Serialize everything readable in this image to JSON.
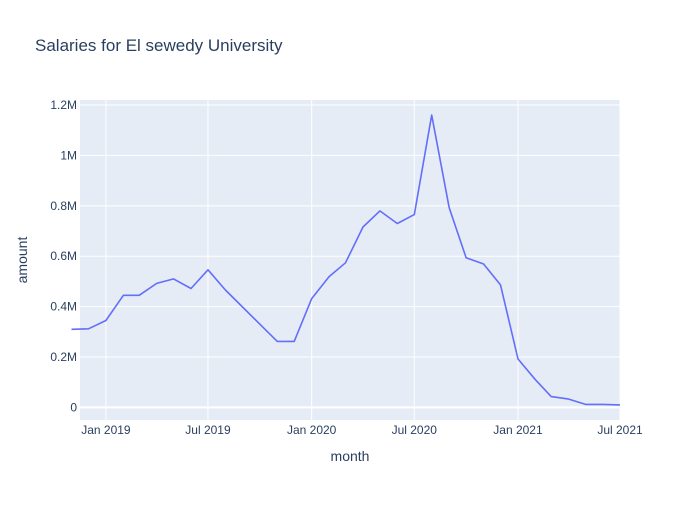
{
  "chart_data": {
    "type": "line",
    "title": "Salaries for El sewedy University",
    "xlabel": "month",
    "ylabel": "amount",
    "x_range": [
      "2018-11-16",
      "2021-07-01"
    ],
    "y_range": [
      -50000,
      1220000
    ],
    "x_ticks": [
      {
        "date": "2019-01-01",
        "label": "Jan 2019"
      },
      {
        "date": "2019-07-01",
        "label": "Jul 2019"
      },
      {
        "date": "2020-01-01",
        "label": "Jan 2020"
      },
      {
        "date": "2020-07-01",
        "label": "Jul 2020"
      },
      {
        "date": "2021-01-01",
        "label": "Jan 2021"
      },
      {
        "date": "2021-07-01",
        "label": "Jul 2021"
      }
    ],
    "y_ticks": [
      {
        "value": 0,
        "label": "0"
      },
      {
        "value": 200000,
        "label": "0.2M"
      },
      {
        "value": 400000,
        "label": "0.4M"
      },
      {
        "value": 600000,
        "label": "0.6M"
      },
      {
        "value": 800000,
        "label": "0.8M"
      },
      {
        "value": 1000000,
        "label": "1M"
      },
      {
        "value": 1200000,
        "label": "1.2M"
      }
    ],
    "grid": true,
    "line_color": "#636efa",
    "plot_bg": "#e5ecf6",
    "series": [
      {
        "x": [
          "2018-11-01",
          "2018-12-01",
          "2019-01-01",
          "2019-02-01",
          "2019-03-01",
          "2019-04-01",
          "2019-05-01",
          "2019-06-01",
          "2019-07-01",
          "2019-08-01",
          "2019-11-01",
          "2019-12-01",
          "2020-01-01",
          "2020-02-01",
          "2020-03-01",
          "2020-04-01",
          "2020-05-01",
          "2020-06-01",
          "2020-07-01",
          "2020-08-01",
          "2020-09-01",
          "2020-10-01",
          "2020-11-01",
          "2020-12-01",
          "2021-01-01",
          "2021-02-01",
          "2021-03-01",
          "2021-04-01",
          "2021-05-01",
          "2021-06-01",
          "2021-07-01"
        ],
        "y": [
          310000,
          312000,
          345000,
          445000,
          445000,
          492000,
          510000,
          472000,
          546000,
          466000,
          262000,
          262000,
          432000,
          519000,
          574000,
          716000,
          780000,
          730000,
          765000,
          1160000,
          792000,
          594000,
          569000,
          486000,
          192000,
          110000,
          43000,
          33000,
          12000,
          12000,
          10000
        ]
      }
    ]
  }
}
